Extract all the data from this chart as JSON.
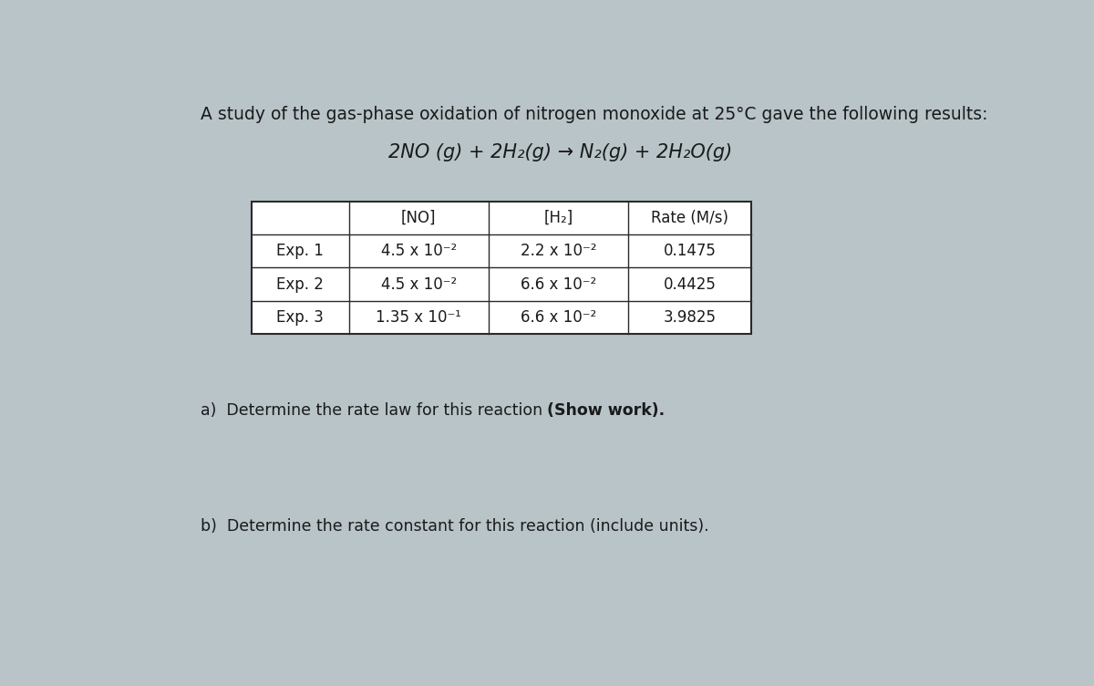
{
  "title_line1": "A study of the gas-phase oxidation of nitrogen monoxide at 25°C gave the following results:",
  "equation": "2NO (g) + 2H₂(g) → N₂(g) + 2H₂O(g)",
  "col_headers": [
    "",
    "[NO]",
    "[H₂]",
    "Rate (M/s)"
  ],
  "rows": [
    [
      "Exp. 1",
      "4.5 x 10⁻²",
      "2.2 x 10⁻²",
      "0.1475"
    ],
    [
      "Exp. 2",
      "4.5 x 10⁻²",
      "6.6 x 10⁻²",
      "0.4425"
    ],
    [
      "Exp. 3",
      "1.35 x 10⁻¹",
      "6.6 x 10⁻²",
      "3.9825"
    ]
  ],
  "qa_prefix": "a)  Determine the rate law for this reaction ",
  "qa_bold": "(Show work).",
  "question_b": "b)  Determine the rate constant for this reaction (include units).",
  "bg_color": "#b8c4c8",
  "text_color": "#1a1a1a",
  "title_fontsize": 13.5,
  "eq_fontsize": 15,
  "table_fontsize": 12,
  "question_fontsize": 12.5
}
